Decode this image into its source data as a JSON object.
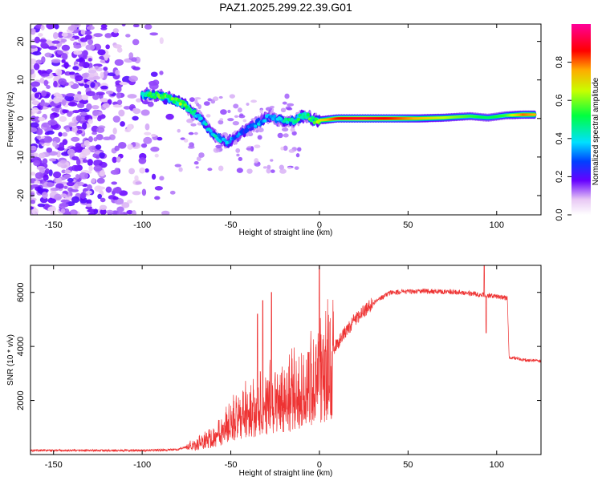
{
  "title": "PAZ1.2025.299.22.39.G01",
  "chart_data": [
    {
      "type": "heatmap",
      "name": "spectrogram",
      "xlabel": "Height of straight line (km)",
      "ylabel": "Frequency (Hz)",
      "xlim": [
        -163,
        125
      ],
      "ylim": [
        -25,
        24.5
      ],
      "xticks": [
        -150,
        -100,
        -50,
        0,
        50,
        100
      ],
      "yticks": [
        -20,
        -10,
        0,
        10,
        20
      ],
      "xtick_labels": [
        "-150",
        "-100",
        "-50",
        "0",
        "50",
        "100"
      ],
      "ytick_labels": [
        "-20",
        "-10",
        "0",
        "10",
        "20"
      ],
      "ridge": [
        {
          "x": -100,
          "y": 6.2,
          "a": 0.45
        },
        {
          "x": -90,
          "y": 6.0,
          "a": 0.55
        },
        {
          "x": -84,
          "y": 5.2,
          "a": 0.55
        },
        {
          "x": -78,
          "y": 4.0,
          "a": 0.6
        },
        {
          "x": -72,
          "y": 2.0,
          "a": 0.45
        },
        {
          "x": -67,
          "y": 0.0,
          "a": 0.4
        },
        {
          "x": -62,
          "y": -3.0,
          "a": 0.35
        },
        {
          "x": -57,
          "y": -5.0,
          "a": 0.4
        },
        {
          "x": -52,
          "y": -6.5,
          "a": 0.35
        },
        {
          "x": -46,
          "y": -4.5,
          "a": 0.3
        },
        {
          "x": -40,
          "y": -2.5,
          "a": 0.3
        },
        {
          "x": -34,
          "y": -1.0,
          "a": 0.35
        },
        {
          "x": -28,
          "y": 0.5,
          "a": 0.3
        },
        {
          "x": -22,
          "y": -0.5,
          "a": 0.4
        },
        {
          "x": -15,
          "y": -0.8,
          "a": 0.5
        },
        {
          "x": -8,
          "y": 1.0,
          "a": 0.5
        },
        {
          "x": -3,
          "y": -0.5,
          "a": 0.55
        },
        {
          "x": 2,
          "y": -0.4,
          "a": 0.7
        },
        {
          "x": 10,
          "y": 0.0,
          "a": 0.85
        },
        {
          "x": 25,
          "y": 0.0,
          "a": 0.9
        },
        {
          "x": 40,
          "y": 0.0,
          "a": 0.85
        },
        {
          "x": 55,
          "y": 0.0,
          "a": 0.75
        },
        {
          "x": 70,
          "y": 0.2,
          "a": 0.65
        },
        {
          "x": 85,
          "y": 0.6,
          "a": 0.55
        },
        {
          "x": 95,
          "y": 0.2,
          "a": 0.5
        },
        {
          "x": 105,
          "y": 0.8,
          "a": 0.55
        },
        {
          "x": 115,
          "y": 1.0,
          "a": 0.8
        },
        {
          "x": 122,
          "y": 1.0,
          "a": 0.75
        }
      ],
      "colorbar": {
        "label": "Normalized spectral amplitude",
        "range": [
          0,
          1
        ],
        "ticks": [
          0.0,
          0.2,
          0.4,
          0.6,
          0.8
        ],
        "tick_labels": [
          "0.0",
          "0.2",
          "0.4",
          "0.6",
          "0.8"
        ]
      }
    },
    {
      "type": "line",
      "name": "snr",
      "xlabel": "Height of straight line (km)",
      "ylabel": "SNR (10 * v/v)",
      "xlim": [
        -163,
        125
      ],
      "ylim": [
        0,
        7000
      ],
      "xticks": [
        -150,
        -100,
        -50,
        0,
        50,
        100
      ],
      "yticks": [
        2000,
        4000,
        6000
      ],
      "xtick_labels": [
        "-150",
        "-100",
        "-50",
        "0",
        "50",
        "100"
      ],
      "ytick_labels": [
        "2000",
        "4000",
        "6000"
      ],
      "color": "#ee3333",
      "envelope": [
        {
          "x": -163,
          "y": 150
        },
        {
          "x": -100,
          "y": 150
        },
        {
          "x": -80,
          "y": 180
        },
        {
          "x": -70,
          "y": 400
        },
        {
          "x": -60,
          "y": 700
        },
        {
          "x": -50,
          "y": 1300
        },
        {
          "x": -40,
          "y": 1700
        },
        {
          "x": -30,
          "y": 2100
        },
        {
          "x": -20,
          "y": 2300
        },
        {
          "x": -10,
          "y": 2600
        },
        {
          "x": 0,
          "y": 3000
        },
        {
          "x": 10,
          "y": 4100
        },
        {
          "x": 20,
          "y": 5000
        },
        {
          "x": 30,
          "y": 5600
        },
        {
          "x": 40,
          "y": 6000
        },
        {
          "x": 60,
          "y": 6050
        },
        {
          "x": 80,
          "y": 6000
        },
        {
          "x": 100,
          "y": 5850
        },
        {
          "x": 106,
          "y": 5800
        },
        {
          "x": 107,
          "y": 3600
        },
        {
          "x": 115,
          "y": 3500
        },
        {
          "x": 125,
          "y": 3450
        }
      ],
      "spikes": [
        {
          "x": 0,
          "y": 7000
        },
        {
          "x": -27,
          "y": 6000
        },
        {
          "x": -32,
          "y": 5700
        },
        {
          "x": -35,
          "y": 5200
        },
        {
          "x": 93,
          "y": 7000
        },
        {
          "x": 94,
          "y": 4500
        }
      ]
    }
  ]
}
